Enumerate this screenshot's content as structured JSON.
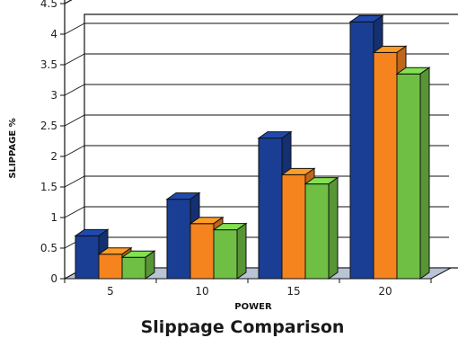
{
  "chart_data": {
    "type": "bar",
    "title": "Slippage Comparison",
    "xlabel": "POWER",
    "ylabel": "SLIPPAGE %",
    "categories": [
      "5",
      "10",
      "15",
      "20"
    ],
    "series": [
      {
        "color": "#1a3e93",
        "values": [
          0.7,
          1.3,
          2.3,
          4.2
        ]
      },
      {
        "color": "#f5841f",
        "values": [
          0.4,
          0.9,
          1.7,
          3.7
        ]
      },
      {
        "color": "#6fbf44",
        "values": [
          0.35,
          0.8,
          1.55,
          3.35
        ]
      }
    ],
    "ylim": [
      0,
      4.5
    ],
    "yticks": [
      0,
      0.5,
      1,
      1.5,
      2,
      2.5,
      3,
      3.5,
      4,
      4.5
    ],
    "ytick_labels": [
      "0",
      "0.5",
      "1",
      "1.5",
      "2",
      "2.5",
      "3",
      "3.5",
      "4",
      "4.5"
    ],
    "grid": true,
    "style": "3d-bar"
  }
}
